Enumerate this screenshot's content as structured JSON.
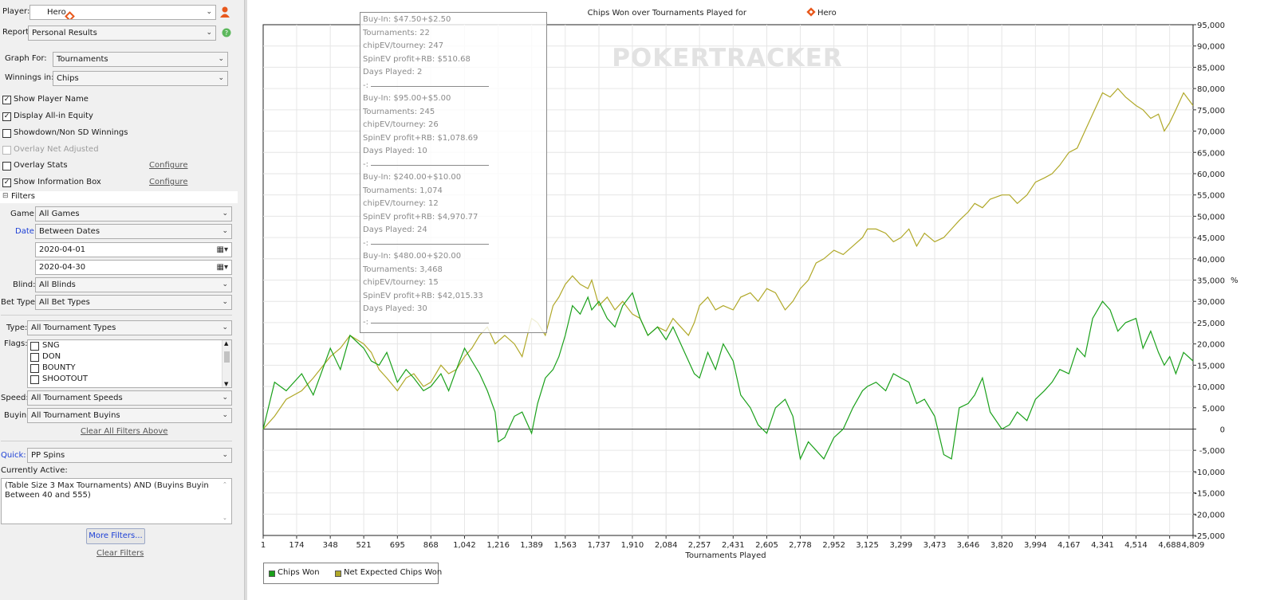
{
  "colors": {
    "chips_won": "#1aa01a",
    "net_expected": "#b0a828",
    "accent_blue": "#1c3fd6",
    "brand_diamond": "#e8581c",
    "help_green": "#5cb85c"
  },
  "left": {
    "player_label": "Player:",
    "player_value": "Hero",
    "report_label": "Report:",
    "report_value": "Personal Results",
    "graph_for_label": "Graph For:",
    "graph_for_value": "Tournaments",
    "winnings_label": "Winnings in:",
    "winnings_value": "Chips",
    "checkboxes": [
      {
        "label": "Show Player Name",
        "checked": true,
        "enabled": true
      },
      {
        "label": "Display All-in Equity",
        "checked": true,
        "enabled": true
      },
      {
        "label": "Showdown/Non SD Winnings",
        "checked": false,
        "enabled": true
      },
      {
        "label": "Overlay Net Adjusted",
        "checked": false,
        "enabled": false
      },
      {
        "label": "Overlay Stats",
        "checked": false,
        "enabled": true
      },
      {
        "label": "Show Information Box",
        "checked": true,
        "enabled": true
      }
    ],
    "configure_label": "Configure",
    "filters_header": "Filters",
    "game_label": "Game:",
    "game_value": "All Games",
    "date_label": "Date:",
    "date_value": "Between Dates",
    "date_from": "2020-04-01",
    "date_to": "2020-04-30",
    "blind_label": "Blind:",
    "blind_value": "All Blinds",
    "bet_type_label": "Bet Type:",
    "bet_type_value": "All Bet Types",
    "type_label": "Type:",
    "type_value": "All Tournament Types",
    "flags_label": "Flags:",
    "flags": [
      "SNG",
      "DON",
      "BOUNTY",
      "SHOOTOUT"
    ],
    "speed_label": "Speed:",
    "speed_value": "All Tournament Speeds",
    "buyin_label": "Buyin:",
    "buyin_value": "All Tournament Buyins",
    "clear_all_above": "Clear All Filters Above",
    "quick_label": "Quick:",
    "quick_value": "PP Spins",
    "currently_active_label": "Currently Active:",
    "currently_active_text": "(Table Size 3 Max Tournaments) AND (Buyins Buyin Between 40 and 555)",
    "more_filters": "More Filters...",
    "clear_filters": "Clear Filters"
  },
  "info_box": {
    "blocks": [
      {
        "buyin": "Buy-In: $47.50+$2.50",
        "tournaments": "Tournaments: 22",
        "chipev": "chipEV/tourney: 247",
        "spinev": "SpinEV profit+RB: $510.68",
        "days": "Days Played: 2"
      },
      {
        "buyin": "Buy-In: $95.00+$5.00",
        "tournaments": "Tournaments: 245",
        "chipev": "chipEV/tourney: 26",
        "spinev": "SpinEV profit+RB: $1,078.69",
        "days": "Days Played: 10"
      },
      {
        "buyin": "Buy-In: $240.00+$10.00",
        "tournaments": "Tournaments: 1,074",
        "chipev": "chipEV/tourney: 12",
        "spinev": "SpinEV profit+RB: $4,970.77",
        "days": "Days Played: 24"
      },
      {
        "buyin": "Buy-In: $480.00+$20.00",
        "tournaments": "Tournaments: 3,468",
        "chipev": "chipEV/tourney: 15",
        "spinev": "SpinEV profit+RB: $42,015.33",
        "days": "Days Played: 30"
      }
    ],
    "separator": "-:"
  },
  "chart_data": {
    "type": "line",
    "title": "Chips Won over Tournaments Played for",
    "title_player": "Hero",
    "watermark": "POKERTRACKER",
    "xlabel": "Tournaments Played",
    "ylabel": "",
    "y_unit_right": "%",
    "x_ticks": [
      1,
      174,
      348,
      521,
      695,
      868,
      1042,
      1216,
      1389,
      1563,
      1737,
      1910,
      2084,
      2257,
      2431,
      2605,
      2778,
      2952,
      3125,
      3299,
      3473,
      3646,
      3820,
      3994,
      4167,
      4341,
      4514,
      4688,
      4809
    ],
    "x_tick_labels": [
      "1",
      "174",
      "348",
      "521",
      "695",
      "868",
      "1,042",
      "1,216",
      "1,389",
      "1,563",
      "1,737",
      "1,910",
      "2,084",
      "2,257",
      "2,431",
      "2,605",
      "2,778",
      "2,952",
      "3,125",
      "3,299",
      "3,473",
      "3,646",
      "3,820",
      "3,994",
      "4,167",
      "4,341",
      "4,514",
      "4,688",
      "4,809"
    ],
    "ylim": [
      -25000,
      95000
    ],
    "y_ticks": [
      -25000,
      -20000,
      -15000,
      -10000,
      -5000,
      0,
      5000,
      10000,
      15000,
      20000,
      25000,
      30000,
      35000,
      40000,
      45000,
      50000,
      55000,
      60000,
      65000,
      70000,
      75000,
      80000,
      85000,
      90000,
      95000
    ],
    "y_tick_labels": [
      "-25,000",
      "-20,000",
      "-15,000",
      "-10,000",
      "-5,000",
      "0",
      "5,000",
      "10,000",
      "15,000",
      "20,000",
      "25,000",
      "30,000",
      "35,000",
      "40,000",
      "45,000",
      "50,000",
      "55,000",
      "60,000",
      "65,000",
      "70,000",
      "75,000",
      "80,000",
      "85,000",
      "90,000",
      "95,000"
    ],
    "grid": true,
    "legend_position": "bottom-left",
    "series": [
      {
        "name": "Chips Won",
        "x": [
          1,
          60,
          120,
          200,
          260,
          348,
          400,
          450,
          521,
          560,
          600,
          640,
          695,
          740,
          780,
          830,
          868,
          920,
          960,
          1000,
          1042,
          1080,
          1120,
          1160,
          1200,
          1216,
          1250,
          1300,
          1340,
          1389,
          1420,
          1460,
          1500,
          1530,
          1563,
          1600,
          1640,
          1680,
          1700,
          1737,
          1780,
          1820,
          1860,
          1910,
          1950,
          1990,
          2040,
          2084,
          2120,
          2160,
          2200,
          2230,
          2257,
          2300,
          2340,
          2380,
          2431,
          2470,
          2520,
          2560,
          2605,
          2650,
          2700,
          2740,
          2778,
          2820,
          2860,
          2900,
          2952,
          3000,
          3050,
          3100,
          3125,
          3170,
          3220,
          3260,
          3299,
          3340,
          3380,
          3420,
          3473,
          3520,
          3560,
          3600,
          3646,
          3680,
          3720,
          3760,
          3820,
          3860,
          3900,
          3950,
          3994,
          4040,
          4080,
          4120,
          4167,
          4210,
          4250,
          4290,
          4341,
          4380,
          4420,
          4460,
          4514,
          4550,
          4590,
          4630,
          4660,
          4688,
          4720,
          4760,
          4809
        ],
        "values": [
          0,
          11000,
          9000,
          13000,
          8000,
          19000,
          14000,
          22000,
          19000,
          16000,
          15000,
          18000,
          11000,
          14000,
          12000,
          9000,
          10000,
          13000,
          9000,
          14000,
          19000,
          16000,
          13000,
          9000,
          4000,
          -3000,
          -2000,
          3000,
          4000,
          -1000,
          6000,
          12000,
          14000,
          17000,
          22000,
          29000,
          27000,
          31000,
          28000,
          30000,
          26000,
          24000,
          29000,
          32000,
          26000,
          22000,
          24000,
          21000,
          24000,
          20000,
          16000,
          13000,
          12000,
          18000,
          14000,
          20000,
          16000,
          8000,
          5000,
          1000,
          -1000,
          5000,
          7000,
          3000,
          -7000,
          -3000,
          -5000,
          -7000,
          -2000,
          0,
          5000,
          9000,
          10000,
          11000,
          9000,
          13000,
          12000,
          11000,
          6000,
          7000,
          3000,
          -6000,
          -7000,
          5000,
          6000,
          8000,
          12000,
          4000,
          0,
          1000,
          4000,
          2000,
          7000,
          9000,
          11000,
          14000,
          13000,
          19000,
          17000,
          26000,
          30000,
          28000,
          23000,
          25000,
          26000,
          19000,
          23000,
          18000,
          15000,
          17000,
          13000,
          18000,
          16000
        ]
      },
      {
        "name": "Net Expected Chips Won",
        "x": [
          1,
          60,
          120,
          200,
          260,
          348,
          400,
          450,
          521,
          560,
          600,
          640,
          695,
          740,
          780,
          830,
          868,
          920,
          960,
          1000,
          1042,
          1080,
          1120,
          1160,
          1200,
          1250,
          1300,
          1340,
          1389,
          1420,
          1460,
          1500,
          1530,
          1563,
          1600,
          1640,
          1680,
          1700,
          1737,
          1780,
          1820,
          1860,
          1910,
          1950,
          1990,
          2040,
          2084,
          2120,
          2160,
          2200,
          2230,
          2257,
          2300,
          2340,
          2380,
          2431,
          2470,
          2520,
          2560,
          2605,
          2650,
          2700,
          2740,
          2778,
          2820,
          2860,
          2900,
          2952,
          3000,
          3050,
          3100,
          3125,
          3170,
          3220,
          3260,
          3299,
          3340,
          3380,
          3420,
          3473,
          3520,
          3560,
          3600,
          3646,
          3680,
          3720,
          3760,
          3820,
          3860,
          3900,
          3950,
          3994,
          4040,
          4080,
          4120,
          4167,
          4210,
          4250,
          4290,
          4341,
          4380,
          4420,
          4460,
          4514,
          4550,
          4590,
          4630,
          4660,
          4688,
          4720,
          4760,
          4809
        ],
        "values": [
          0,
          3000,
          7000,
          9000,
          12000,
          17000,
          19000,
          22000,
          20000,
          18000,
          14000,
          12000,
          9000,
          12000,
          13000,
          10000,
          11000,
          15000,
          13000,
          14000,
          17000,
          19000,
          22000,
          24000,
          20000,
          22000,
          20000,
          17000,
          26000,
          25000,
          22000,
          29000,
          31000,
          34000,
          36000,
          34000,
          33000,
          35000,
          29000,
          31000,
          28000,
          30000,
          27000,
          26000,
          22000,
          24000,
          23000,
          26000,
          24000,
          22000,
          25000,
          29000,
          31000,
          28000,
          29000,
          28000,
          31000,
          32000,
          30000,
          33000,
          32000,
          28000,
          30000,
          33000,
          35000,
          39000,
          40000,
          42000,
          41000,
          43000,
          45000,
          47000,
          47000,
          46000,
          44000,
          45000,
          47000,
          43000,
          46000,
          44000,
          45000,
          47000,
          49000,
          51000,
          53000,
          52000,
          54000,
          55000,
          55000,
          53000,
          55000,
          58000,
          59000,
          60000,
          62000,
          65000,
          66000,
          70000,
          74000,
          79000,
          78000,
          80000,
          78000,
          76000,
          75000,
          73000,
          74000,
          70000,
          72000,
          75000,
          79000,
          76000
        ]
      }
    ]
  }
}
